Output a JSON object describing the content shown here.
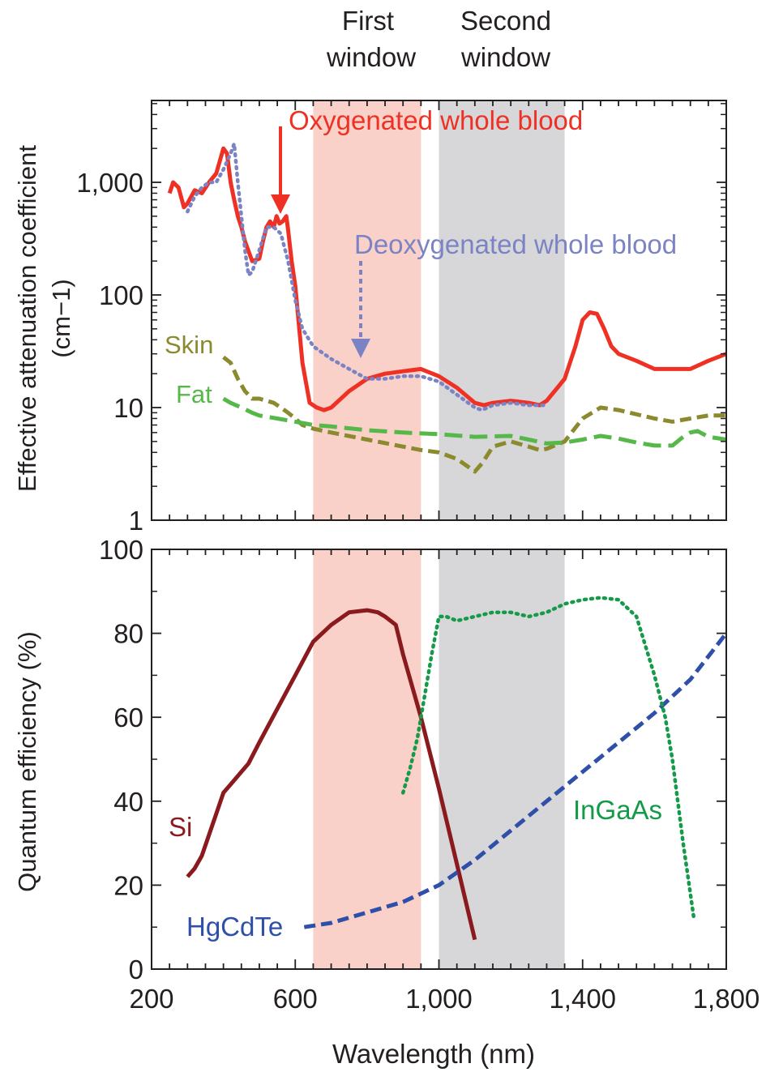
{
  "window_labels": {
    "first": [
      "First",
      "window"
    ],
    "second": [
      "Second",
      "window"
    ]
  },
  "colors": {
    "first_window": "#f9d1c8",
    "second_window": "#d7d7d9",
    "oxy": "#ee3124",
    "deoxy": "#7b83c4",
    "skin": "#8b8a2e",
    "fat": "#55b848",
    "si": "#8b1a1e",
    "hgcdte": "#2f4fa8",
    "ingaas": "#149a48",
    "axis": "#231f20"
  },
  "x_axis": {
    "label": "Wavelength (nm)",
    "range": [
      200,
      1800
    ],
    "ticks": [
      200,
      600,
      1000,
      1400,
      1800
    ],
    "tick_labels": [
      "200",
      "600",
      "1,000",
      "1,400",
      "1,800"
    ],
    "minor_step": 50
  },
  "windows": {
    "first": [
      650,
      950
    ],
    "second": [
      1000,
      1350
    ]
  },
  "chart_data": [
    {
      "type": "line",
      "ylabel": "Effective attenuation coefficient",
      "ylabel_unit": "(cm−1)",
      "yscale": "log",
      "ylim": [
        1,
        5000
      ],
      "y_ticks": [
        1,
        10,
        100,
        1000
      ],
      "y_tick_labels": [
        "1",
        "10",
        "100",
        "1,000"
      ],
      "series": [
        {
          "name": "Oxygenated whole blood",
          "color_key": "oxy",
          "style": "solid",
          "x": [
            250,
            260,
            275,
            290,
            300,
            320,
            340,
            360,
            380,
            400,
            410,
            420,
            430,
            440,
            450,
            460,
            480,
            500,
            510,
            520,
            530,
            540,
            548,
            556,
            565,
            575,
            580,
            590,
            600,
            620,
            640,
            660,
            680,
            700,
            750,
            800,
            850,
            900,
            950,
            1000,
            1050,
            1100,
            1125,
            1150,
            1200,
            1250,
            1280,
            1300,
            1330,
            1350,
            1380,
            1400,
            1420,
            1440,
            1460,
            1480,
            1500,
            1550,
            1600,
            1650,
            1700,
            1750,
            1800
          ],
          "y": [
            800,
            1000,
            900,
            600,
            650,
            850,
            800,
            1000,
            1200,
            2000,
            1800,
            1000,
            700,
            500,
            400,
            300,
            200,
            210,
            300,
            400,
            450,
            400,
            500,
            430,
            450,
            500,
            380,
            200,
            120,
            25,
            11,
            10,
            9.5,
            10,
            14,
            18,
            20,
            21,
            22,
            19,
            15,
            11,
            10.5,
            11,
            11.5,
            11,
            10.5,
            11.5,
            15,
            18,
            35,
            60,
            70,
            68,
            50,
            35,
            30,
            26,
            22,
            22,
            22,
            26,
            30
          ]
        },
        {
          "name": "Deoxygenated whole blood",
          "color_key": "deoxy",
          "style": "dotted",
          "x": [
            300,
            320,
            340,
            360,
            380,
            400,
            420,
            430,
            440,
            450,
            460,
            470,
            480,
            500,
            520,
            540,
            560,
            580,
            600,
            620,
            650,
            700,
            750,
            800,
            850,
            900,
            950,
            1000,
            1050,
            1100,
            1120,
            1150,
            1200,
            1250,
            1300
          ],
          "y": [
            550,
            750,
            900,
            1000,
            1000,
            1300,
            1800,
            2200,
            1000,
            500,
            250,
            150,
            160,
            250,
            400,
            400,
            350,
            200,
            90,
            50,
            35,
            27,
            22,
            18,
            18,
            19,
            19,
            17,
            13,
            10,
            9.5,
            10.5,
            11,
            10.5,
            10.5
          ]
        },
        {
          "name": "Skin",
          "color_key": "skin",
          "style": "dashed",
          "x": [
            400,
            420,
            440,
            460,
            480,
            500,
            520,
            540,
            560,
            580,
            600,
            620,
            650,
            700,
            800,
            900,
            950,
            1000,
            1050,
            1080,
            1100,
            1120,
            1150,
            1200,
            1250,
            1280,
            1300,
            1350,
            1400,
            1450,
            1500,
            1600,
            1650,
            1700,
            1750,
            1800
          ],
          "y": [
            28,
            25,
            18,
            14,
            12,
            12,
            11.5,
            11,
            10,
            9,
            8,
            7,
            6.5,
            6,
            5.2,
            4.5,
            4.2,
            4,
            3.5,
            3,
            2.7,
            3.2,
            4.5,
            5,
            4.5,
            4.2,
            4.3,
            5,
            8,
            10,
            9.5,
            8,
            7.5,
            8,
            8.5,
            8.5
          ]
        },
        {
          "name": "Fat",
          "color_key": "fat",
          "style": "longdash",
          "x": [
            400,
            420,
            450,
            480,
            500,
            550,
            600,
            650,
            700,
            800,
            900,
            1000,
            1100,
            1200,
            1250,
            1300,
            1350,
            1400,
            1450,
            1500,
            1550,
            1600,
            1650,
            1680,
            1700,
            1720,
            1750,
            1800
          ],
          "y": [
            12,
            11,
            10,
            9,
            8.5,
            8,
            7.5,
            7,
            6.8,
            6.3,
            6,
            5.8,
            5.5,
            5.6,
            5.2,
            4.8,
            4.9,
            5.2,
            5.6,
            5.3,
            4.9,
            4.6,
            4.6,
            5.5,
            6,
            6.2,
            5.5,
            5.2
          ]
        }
      ]
    },
    {
      "type": "line",
      "ylabel": "Quantum efficiency (%)",
      "yscale": "linear",
      "ylim": [
        0,
        100
      ],
      "y_ticks": [
        0,
        20,
        40,
        60,
        80,
        100
      ],
      "y_tick_labels": [
        "0",
        "20",
        "40",
        "60",
        "80",
        "100"
      ],
      "series": [
        {
          "name": "Si",
          "color_key": "si",
          "style": "solid",
          "x": [
            300,
            320,
            340,
            360,
            380,
            400,
            420,
            450,
            470,
            500,
            550,
            600,
            650,
            700,
            750,
            800,
            830,
            850,
            880,
            900,
            950,
            1000,
            1050,
            1100
          ],
          "y": [
            22,
            24,
            27,
            32,
            37,
            42,
            44,
            47,
            49,
            54,
            62,
            70,
            78,
            82,
            85,
            85.5,
            85,
            84,
            82,
            75,
            60,
            43,
            25,
            7
          ]
        },
        {
          "name": "HgCdTe",
          "color_key": "hgcdte",
          "style": "dashed",
          "x": [
            625,
            700,
            800,
            900,
            1000,
            1100,
            1200,
            1300,
            1400,
            1500,
            1600,
            1700,
            1800
          ],
          "y": [
            10,
            11,
            13.5,
            16,
            20,
            26,
            33,
            40,
            47,
            54,
            61,
            69,
            80
          ]
        },
        {
          "name": "InGaAs",
          "color_key": "ingaas",
          "style": "dotted",
          "x": [
            900,
            920,
            940,
            960,
            980,
            1000,
            1020,
            1050,
            1100,
            1150,
            1200,
            1250,
            1300,
            1350,
            1400,
            1450,
            1500,
            1550,
            1600,
            1630,
            1650,
            1680,
            1700,
            1710
          ],
          "y": [
            42,
            48,
            55,
            65,
            75,
            84,
            84,
            83,
            84,
            85,
            85,
            84,
            85,
            87,
            88,
            88.5,
            88,
            84,
            70,
            60,
            50,
            30,
            18,
            12
          ]
        }
      ],
      "annotations": [
        {
          "text": "Si",
          "color_key": "si"
        },
        {
          "text": "HgCdTe",
          "color_key": "hgcdte"
        },
        {
          "text": "InGaAs",
          "color_key": "ingaas"
        }
      ]
    }
  ],
  "top_labels": {
    "oxy": "Oxygenated whole blood",
    "deoxy": "Deoxygenated whole blood",
    "skin": "Skin",
    "fat": "Fat"
  }
}
